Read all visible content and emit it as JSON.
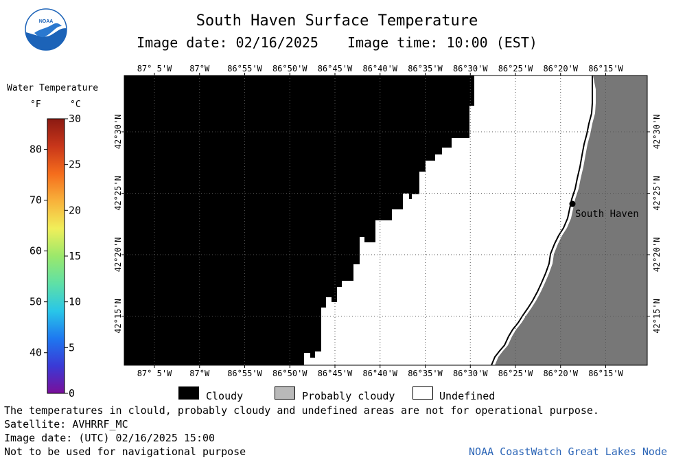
{
  "header": {
    "title": "South Haven Surface Temperature",
    "image_date_label": "Image date: 02/16/2025",
    "image_time_label": "Image time: 10:00 (EST)"
  },
  "logo": {
    "text": "NOAA",
    "colors": {
      "top": "#ffffff",
      "bottom": "#1c63b8",
      "bird": "#ffffff"
    }
  },
  "legend": {
    "title": "Water Temperature",
    "unit_f": "°F",
    "unit_c": "°C",
    "fahrenheit_ticks": [
      {
        "label": "40",
        "value": 40
      },
      {
        "label": "50",
        "value": 50
      },
      {
        "label": "60",
        "value": 60
      },
      {
        "label": "70",
        "value": 70
      },
      {
        "label": "80",
        "value": 80
      }
    ],
    "celsius_ticks": [
      {
        "label": "0",
        "value": 0
      },
      {
        "label": "5",
        "value": 5
      },
      {
        "label": "10",
        "value": 10
      },
      {
        "label": "15",
        "value": 15
      },
      {
        "label": "20",
        "value": 20
      },
      {
        "label": "25",
        "value": 25
      },
      {
        "label": "30",
        "value": 30
      }
    ],
    "celsius_range": [
      0,
      30
    ],
    "gradient_colors": [
      "#7a0f9a",
      "#3a3ad6",
      "#1e78f0",
      "#29c6e8",
      "#5fe0a6",
      "#9be86b",
      "#f0ef5a",
      "#f8b23b",
      "#f56d1c",
      "#c8361a",
      "#8b1a12"
    ]
  },
  "map": {
    "top_lon_labels": [
      "87° 5'W",
      "87°W",
      "86°55'W",
      "86°50'W",
      "86°45'W",
      "86°40'W",
      "86°35'W",
      "86°30'W",
      "86°25'W",
      "86°20'W",
      "86°15'W"
    ],
    "bottom_lon_labels": [
      "87° 5'W",
      "87°W",
      "86°55'W",
      "86°50'W",
      "86°45'W",
      "86°40'W",
      "86°35'W",
      "86°30'W",
      "86°25'W",
      "86°20'W",
      "86°15'W"
    ],
    "lat_labels": [
      "42°30'N",
      "42°25'N",
      "42°20'N",
      "42°15'N"
    ],
    "city": "South Haven",
    "colors": {
      "cloudy": "#000000",
      "land": "#777777",
      "undefined": "#ffffff",
      "probably_cloudy": "#b9b9b9"
    }
  },
  "key": {
    "cloudy": "Cloudy",
    "probably_cloudy": "Probably cloudy",
    "undefined": "Undefined"
  },
  "footer": {
    "disclaimer": "The temperatures in clould, probably cloudy and undefined areas are not for operational purpose.",
    "satellite": "Satellite: AVHRRF_MC",
    "utc_date": "Image date: (UTC) 02/16/2025  15:00",
    "nav_note": "Not to be used for navigational purpose",
    "credit": "NOAA CoastWatch Great Lakes Node"
  }
}
